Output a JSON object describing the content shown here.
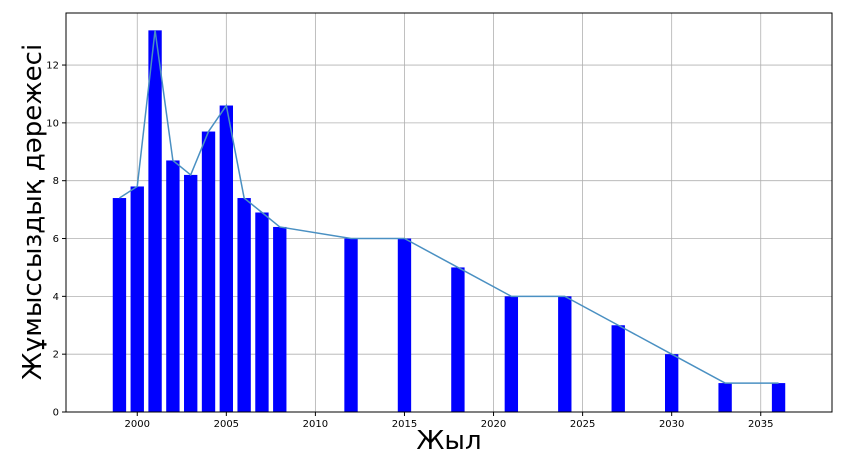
{
  "chart_data": {
    "type": "bar",
    "xlabel": "Жыл",
    "ylabel": "Жұмыссыздық дәрежесі",
    "xlim": [
      1996,
      2039
    ],
    "ylim": [
      0,
      13.8
    ],
    "x_ticks": [
      2000,
      2005,
      2010,
      2015,
      2020,
      2025,
      2030,
      2035
    ],
    "y_ticks": [
      0,
      2,
      4,
      6,
      8,
      10,
      12
    ],
    "grid": true,
    "bar_color": "#0000ff",
    "line_color": "#4a90c2",
    "bar_width_years": 0.75,
    "points": [
      {
        "x": 1999,
        "y": 7.4
      },
      {
        "x": 2000,
        "y": 7.8
      },
      {
        "x": 2001,
        "y": 13.2
      },
      {
        "x": 2002,
        "y": 8.7
      },
      {
        "x": 2003,
        "y": 8.2
      },
      {
        "x": 2004,
        "y": 9.7
      },
      {
        "x": 2005,
        "y": 10.6
      },
      {
        "x": 2006,
        "y": 7.4
      },
      {
        "x": 2007,
        "y": 6.9
      },
      {
        "x": 2008,
        "y": 6.4
      },
      {
        "x": 2012,
        "y": 6.0
      },
      {
        "x": 2015,
        "y": 6.0
      },
      {
        "x": 2018,
        "y": 5.0
      },
      {
        "x": 2021,
        "y": 4.0
      },
      {
        "x": 2024,
        "y": 4.0
      },
      {
        "x": 2027,
        "y": 3.0
      },
      {
        "x": 2030,
        "y": 2.0
      },
      {
        "x": 2033,
        "y": 1.0
      },
      {
        "x": 2036,
        "y": 1.0
      }
    ]
  }
}
